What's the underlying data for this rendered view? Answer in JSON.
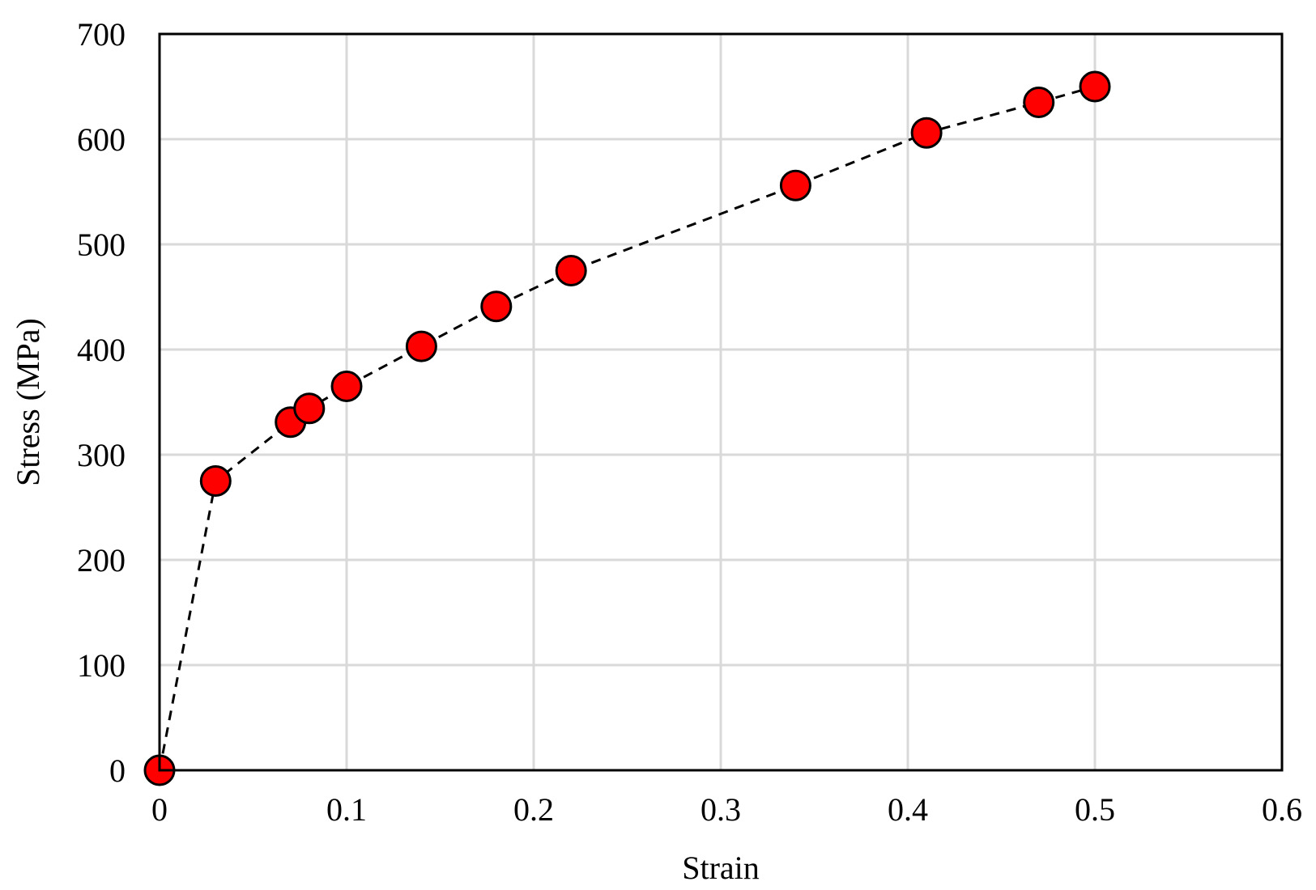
{
  "chart_data": {
    "type": "scatter",
    "xlabel": "Strain",
    "ylabel": "Stress (MPa)",
    "xlim": [
      0,
      0.6
    ],
    "ylim": [
      0,
      700
    ],
    "x_ticks": [
      "0",
      "0.1",
      "0.2",
      "0.3",
      "0.4",
      "0.5",
      "0.6"
    ],
    "y_ticks": [
      "0",
      "100",
      "200",
      "300",
      "400",
      "500",
      "600",
      "700"
    ],
    "x_tick_values": [
      0,
      0.1,
      0.2,
      0.3,
      0.4,
      0.5,
      0.6
    ],
    "y_tick_values": [
      0,
      100,
      200,
      300,
      400,
      500,
      600,
      700
    ],
    "grid": true,
    "series": [
      {
        "x": [
          0,
          0.03,
          0.07,
          0.08,
          0.1,
          0.14,
          0.18,
          0.22,
          0.34,
          0.41,
          0.47,
          0.5
        ],
        "y": [
          0,
          275,
          331,
          344,
          365,
          403,
          441,
          475,
          556,
          606,
          635,
          650
        ],
        "line_style": "dashed",
        "marker": "circle",
        "marker_color": "#ff0000",
        "line_color": "#000000"
      }
    ]
  }
}
